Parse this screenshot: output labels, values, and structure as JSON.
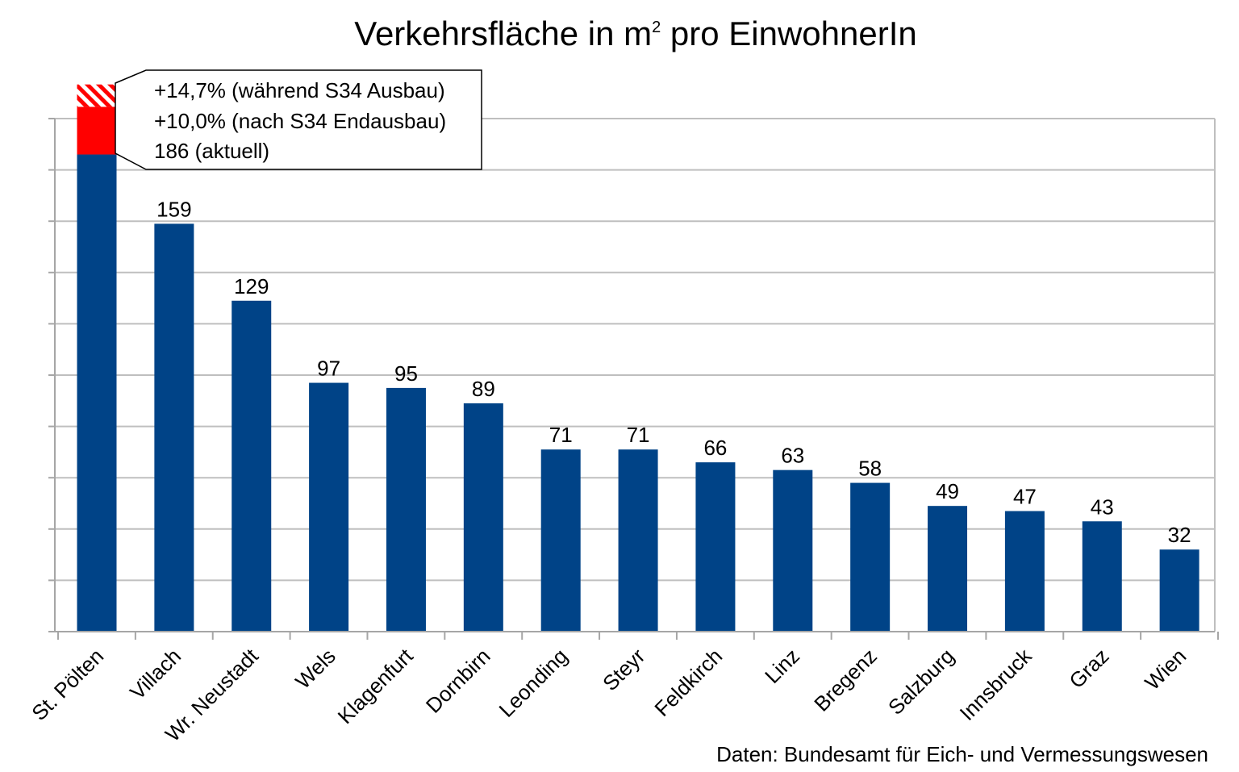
{
  "title": {
    "main": "Verkehrsfläche in m",
    "superscript": "2",
    "rest": " pro EinwohnerIn"
  },
  "source": "Daten: Bundesamt für Eich- und Vermessungswesen",
  "callout": {
    "lines": [
      "+14,7% (während S34 Ausbau)",
      "+10,0% (nach S34 Endausbau)",
      "186 (aktuell)"
    ]
  },
  "colors": {
    "bar": "#004387",
    "increase": "#ff0000",
    "increase_hatched": "#ff0000",
    "grid": "#bfbfbf",
    "axis": "#a6a6a6"
  },
  "chart_data": {
    "type": "bar",
    "title": "Verkehrsfläche in m² pro EinwohnerIn",
    "xlabel": "",
    "ylabel": "",
    "ylim": [
      0,
      200
    ],
    "grid": true,
    "y_tick_labels_shown": false,
    "categories": [
      "St. Pölten",
      "Villach",
      "Wr. Neustadt",
      "Wels",
      "Klagenfurt",
      "Dornbirn",
      "Leonding",
      "Steyr",
      "Feldkirch",
      "Linz",
      "Bregenz",
      "Salzburg",
      "Innsbruck",
      "Graz",
      "Wien"
    ],
    "values": [
      186,
      159,
      129,
      97,
      95,
      89,
      71,
      71,
      66,
      63,
      58,
      49,
      47,
      43,
      32
    ],
    "data_labels": [
      "",
      "159",
      "129",
      "97",
      "95",
      "89",
      "71",
      "71",
      "66",
      "63",
      "58",
      "49",
      "47",
      "43",
      "32"
    ],
    "stacked_on_first": [
      {
        "name": "+10,0% (nach S34 Endausbau)",
        "value": 18.6,
        "fill": "solid"
      },
      {
        "name": "+14,7% (während S34 Ausbau)",
        "value": 8.7,
        "fill": "hatched"
      }
    ]
  }
}
